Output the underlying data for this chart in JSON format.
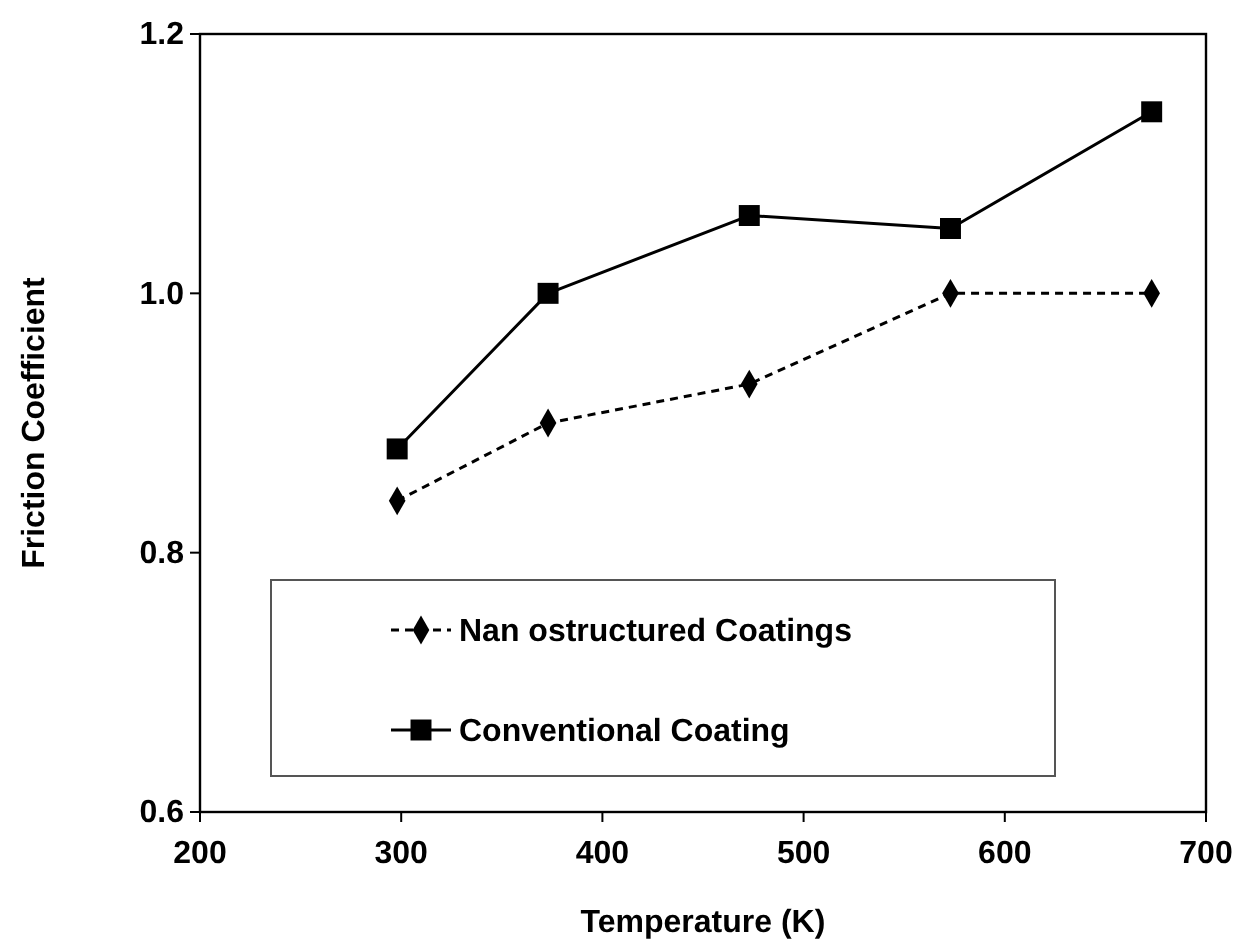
{
  "chart_data": {
    "type": "line",
    "xlabel": "Temperature (K)",
    "ylabel": "Friction Coefficient",
    "x": [
      298,
      373,
      473,
      573,
      673
    ],
    "series": [
      {
        "name": "Nan ostructured Coatings",
        "color": "#000000",
        "values": [
          0.84,
          0.9,
          0.93,
          1.0,
          1.0
        ],
        "marker": "diamond",
        "line_style": "dashed"
      },
      {
        "name": "Conventional Coating",
        "color": "#000000",
        "values": [
          0.88,
          1.0,
          1.06,
          1.05,
          1.14
        ],
        "marker": "square",
        "line_style": "solid"
      }
    ],
    "xlim": [
      200,
      700
    ],
    "xticks": [
      200,
      300,
      400,
      500,
      600,
      700
    ],
    "ylim": [
      0.6,
      1.2
    ],
    "yticks": [
      {
        "value": 0.6,
        "label": "0.6"
      },
      {
        "value": 0.8,
        "label": "0.8"
      },
      {
        "value": 1.0,
        "label": "1.0"
      },
      {
        "value": 1.2,
        "label": "1.2"
      }
    ],
    "grid": false,
    "legend": "bottom"
  }
}
